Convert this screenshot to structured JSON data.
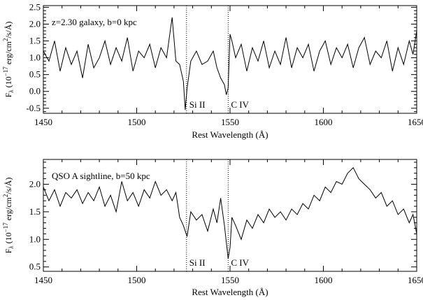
{
  "chart_data": [
    {
      "type": "line",
      "annotation": "z=2.30 galaxy, b=0 kpc",
      "xlabel": "Rest Wavelength (Å)",
      "ylabel": {
        "main": "F",
        "sub": "λ",
        "rest": " (10",
        "exp": "−17",
        "unit": " erg/cm",
        "unit_exp": "2",
        "unit_tail": "/s/Å)"
      },
      "xlim": [
        1450,
        1650
      ],
      "ylim": [
        -0.65,
        2.55
      ],
      "xticks": [
        1450,
        1500,
        1550,
        1600,
        1650
      ],
      "xtick_labels": [
        "1450",
        "1500",
        "1550",
        "1600",
        "1650"
      ],
      "yticks": [
        -0.5,
        0.0,
        0.5,
        1.0,
        1.5,
        2.0,
        2.5
      ],
      "ytick_labels": [
        "-0.5",
        "0.0",
        "0.5",
        "1.0",
        "1.5",
        "2.0",
        "2.5"
      ],
      "lines": [
        {
          "x": 1526.7,
          "label": "Si II"
        },
        {
          "x": 1549.0,
          "label": "C IV"
        }
      ],
      "series": [
        {
          "x": [
            1450,
            1453,
            1456,
            1459,
            1462,
            1465,
            1468,
            1471,
            1474,
            1477,
            1480,
            1483,
            1486,
            1489,
            1492,
            1495,
            1498,
            1501,
            1504,
            1507,
            1510,
            1513,
            1516,
            1519,
            1521,
            1523,
            1525,
            1526,
            1527,
            1529,
            1532,
            1535,
            1538,
            1541,
            1543,
            1545,
            1547,
            1548,
            1549,
            1550,
            1551,
            1553,
            1556,
            1559,
            1562,
            1565,
            1568,
            1571,
            1574,
            1577,
            1580,
            1583,
            1586,
            1589,
            1592,
            1595,
            1598,
            1601,
            1604,
            1607,
            1610,
            1613,
            1616,
            1619,
            1622,
            1625,
            1628,
            1631,
            1634,
            1637,
            1640,
            1643,
            1646,
            1648,
            1650
          ],
          "y": [
            1.2,
            0.9,
            1.5,
            0.6,
            1.3,
            0.8,
            1.2,
            0.4,
            1.4,
            0.7,
            1.0,
            1.5,
            0.8,
            1.3,
            0.9,
            1.6,
            0.6,
            1.2,
            1.0,
            1.4,
            0.7,
            1.3,
            1.0,
            2.2,
            0.9,
            0.8,
            0.3,
            -0.55,
            0.1,
            0.9,
            1.2,
            0.8,
            0.9,
            1.2,
            0.7,
            0.4,
            0.2,
            -0.1,
            0.1,
            1.7,
            1.5,
            1.0,
            1.4,
            0.6,
            1.3,
            0.9,
            1.5,
            0.7,
            1.2,
            0.8,
            1.6,
            0.7,
            1.3,
            1.0,
            1.4,
            0.6,
            1.2,
            1.5,
            0.8,
            1.3,
            1.0,
            1.4,
            0.7,
            1.3,
            1.6,
            0.8,
            1.2,
            1.0,
            1.5,
            0.6,
            1.3,
            0.8,
            1.5,
            1.1,
            1.8
          ]
        }
      ]
    },
    {
      "type": "line",
      "annotation": "QSO A sightline, b=50 kpc",
      "xlabel": "Rest Wavelength (Å)",
      "ylabel": {
        "main": "F",
        "sub": "λ",
        "rest": " (10",
        "exp": "−17",
        "unit": " erg/cm",
        "unit_exp": "2",
        "unit_tail": "/s/Å)"
      },
      "xlim": [
        1450,
        1650
      ],
      "ylim": [
        0.42,
        2.45
      ],
      "xticks": [
        1450,
        1500,
        1550,
        1600,
        1650
      ],
      "xtick_labels": [
        "1450",
        "1500",
        "1550",
        "1600",
        "1650"
      ],
      "yticks": [
        0.5,
        1.0,
        1.5,
        2.0
      ],
      "ytick_labels": [
        "0.5",
        "1.0",
        "1.5",
        "2.0"
      ],
      "lines": [
        {
          "x": 1526.7,
          "label": "Si II"
        },
        {
          "x": 1549.0,
          "label": "C IV"
        }
      ],
      "series": [
        {
          "x": [
            1450,
            1453,
            1456,
            1459,
            1462,
            1465,
            1468,
            1471,
            1474,
            1477,
            1480,
            1483,
            1486,
            1489,
            1492,
            1495,
            1498,
            1501,
            1504,
            1507,
            1510,
            1513,
            1516,
            1519,
            1521,
            1523,
            1525,
            1527,
            1529,
            1532,
            1535,
            1538,
            1541,
            1543,
            1545,
            1547,
            1548,
            1549,
            1550,
            1551,
            1553,
            1556,
            1559,
            1562,
            1565,
            1568,
            1571,
            1574,
            1577,
            1580,
            1583,
            1586,
            1589,
            1592,
            1595,
            1598,
            1601,
            1604,
            1607,
            1610,
            1613,
            1616,
            1619,
            1622,
            1625,
            1628,
            1631,
            1634,
            1637,
            1640,
            1643,
            1646,
            1648,
            1650
          ],
          "y": [
            1.95,
            1.7,
            1.9,
            1.6,
            1.85,
            1.75,
            1.9,
            1.65,
            1.85,
            1.7,
            1.95,
            1.6,
            1.8,
            1.5,
            2.05,
            1.7,
            1.85,
            1.6,
            1.9,
            1.75,
            2.05,
            1.8,
            1.9,
            1.7,
            1.85,
            1.4,
            1.25,
            1.05,
            1.5,
            1.35,
            1.45,
            1.15,
            1.55,
            1.3,
            1.75,
            1.25,
            0.95,
            0.65,
            0.85,
            1.4,
            1.25,
            1.0,
            1.35,
            1.2,
            1.45,
            1.3,
            1.55,
            1.4,
            1.5,
            1.35,
            1.55,
            1.45,
            1.65,
            1.55,
            1.8,
            1.7,
            1.95,
            1.85,
            2.05,
            2.0,
            2.2,
            2.3,
            2.1,
            2.0,
            1.9,
            1.75,
            1.85,
            1.6,
            1.7,
            1.45,
            1.55,
            1.3,
            1.45,
            1.1
          ]
        }
      ]
    }
  ]
}
